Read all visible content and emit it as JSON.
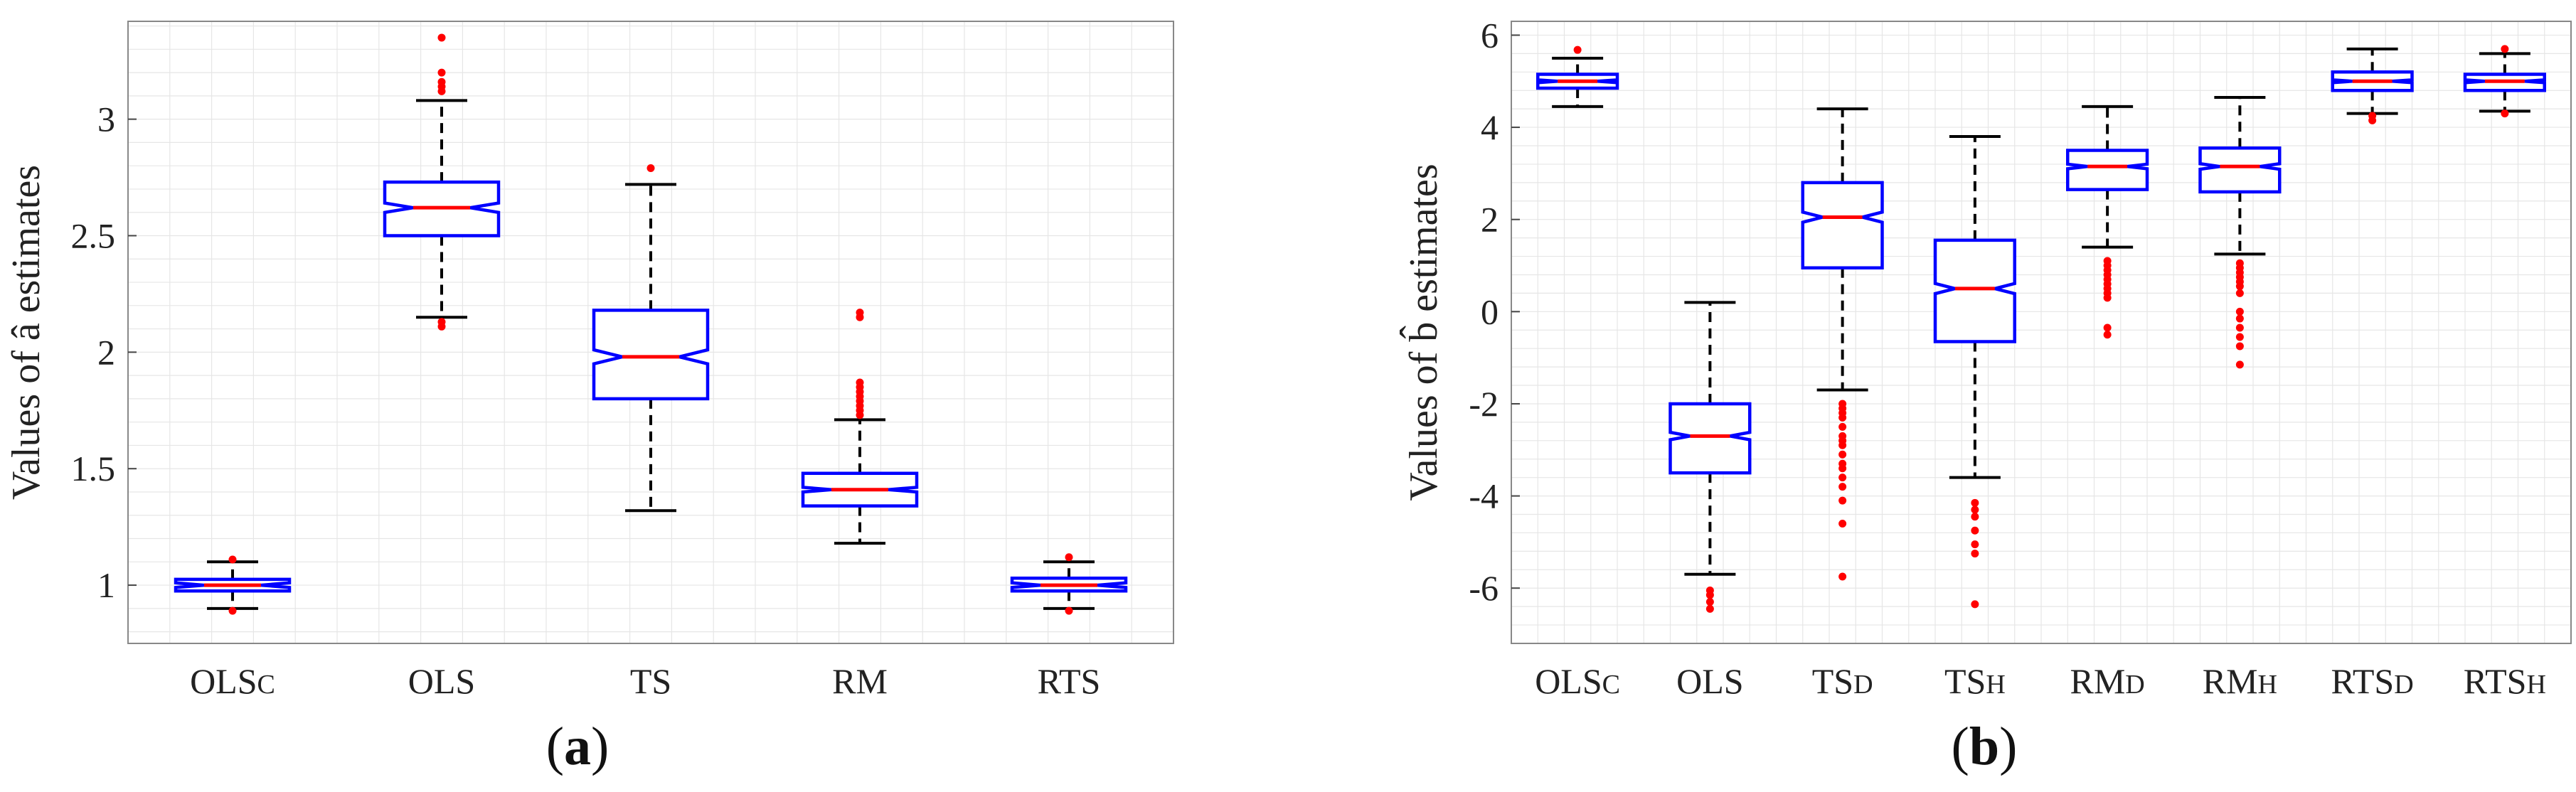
{
  "chart_data": [
    {
      "type": "box",
      "panel_label": "(a)",
      "ylabel": "Values of â estimates",
      "ylim": [
        0.75,
        3.42
      ],
      "yticks": [
        1,
        1.5,
        2,
        2.5,
        3
      ],
      "ytick_labels": [
        "1",
        "1.5",
        "2",
        "2.5",
        "3"
      ],
      "grid": true,
      "categories": [
        "OLSc",
        "OLS",
        "TS",
        "RM",
        "RTS"
      ],
      "boxes": [
        {
          "label": "OLSc",
          "whisker_low": 0.9,
          "q1": 0.975,
          "median": 1.0,
          "q3": 1.025,
          "whisker_high": 1.1,
          "notch": [
            0.99,
            1.01
          ],
          "outliers": [
            0.89,
            1.11
          ]
        },
        {
          "label": "OLS",
          "whisker_low": 2.15,
          "q1": 2.5,
          "median": 2.62,
          "q3": 2.73,
          "whisker_high": 3.08,
          "notch": [
            2.6,
            2.64
          ],
          "outliers": [
            2.11,
            2.13,
            3.12,
            3.14,
            3.16,
            3.2,
            3.35
          ]
        },
        {
          "label": "TS",
          "whisker_low": 1.32,
          "q1": 1.8,
          "median": 1.98,
          "q3": 2.18,
          "whisker_high": 2.72,
          "notch": [
            1.95,
            2.01
          ],
          "outliers": [
            2.79
          ]
        },
        {
          "label": "RM",
          "whisker_low": 1.18,
          "q1": 1.34,
          "median": 1.41,
          "q3": 1.48,
          "whisker_high": 1.71,
          "notch": [
            1.4,
            1.42
          ],
          "outliers": [
            1.73,
            1.75,
            1.77,
            1.79,
            1.81,
            1.83,
            1.85,
            1.87,
            2.15,
            2.17
          ]
        },
        {
          "label": "RTS",
          "whisker_low": 0.9,
          "q1": 0.975,
          "median": 1.0,
          "q3": 1.03,
          "whisker_high": 1.1,
          "notch": [
            0.99,
            1.01
          ],
          "outliers": [
            0.89,
            1.12
          ]
        }
      ]
    },
    {
      "type": "box",
      "panel_label": "(b)",
      "ylabel": "Values of b̂ estimates",
      "ylim": [
        -7.2,
        6.3
      ],
      "yticks": [
        -6,
        -4,
        -2,
        0,
        2,
        4,
        6
      ],
      "ytick_labels": [
        "-6",
        "-4",
        "-2",
        "0",
        "2",
        "4",
        "6"
      ],
      "grid": true,
      "categories": [
        "OLSc",
        "OLS",
        "TSD",
        "TSH",
        "RMD",
        "RMH",
        "RTSD",
        "RTSH"
      ],
      "boxes": [
        {
          "label": "OLSc",
          "whisker_low": 4.45,
          "q1": 4.85,
          "median": 5.0,
          "q3": 5.15,
          "whisker_high": 5.5,
          "notch": [
            4.97,
            5.03
          ],
          "outliers": [
            5.68
          ]
        },
        {
          "label": "OLS",
          "whisker_low": -5.7,
          "q1": -3.5,
          "median": -2.7,
          "q3": -2.0,
          "whisker_high": 0.2,
          "notch": [
            -2.78,
            -2.62
          ],
          "outliers": [
            -6.05,
            -6.15,
            -6.3,
            -6.45
          ]
        },
        {
          "label": "TSD",
          "whisker_low": -1.7,
          "q1": 0.95,
          "median": 2.05,
          "q3": 2.8,
          "whisker_high": 4.4,
          "notch": [
            1.94,
            2.16
          ],
          "outliers": [
            -2.0,
            -2.1,
            -2.2,
            -2.3,
            -2.5,
            -2.7,
            -2.8,
            -2.9,
            -3.1,
            -3.3,
            -3.4,
            -3.6,
            -3.8,
            -4.1,
            -4.6,
            -5.75
          ]
        },
        {
          "label": "TSH",
          "whisker_low": -3.6,
          "q1": -0.65,
          "median": 0.5,
          "q3": 1.55,
          "whisker_high": 3.8,
          "notch": [
            0.39,
            0.61
          ],
          "outliers": [
            -4.15,
            -4.3,
            -4.45,
            -4.75,
            -5.05,
            -5.25,
            -6.35
          ]
        },
        {
          "label": "RMD",
          "whisker_low": 1.4,
          "q1": 2.65,
          "median": 3.15,
          "q3": 3.5,
          "whisker_high": 4.45,
          "notch": [
            3.1,
            3.2
          ],
          "outliers": [
            1.1,
            1.0,
            0.9,
            0.8,
            0.7,
            0.6,
            0.5,
            0.4,
            0.3,
            -0.35,
            -0.5
          ]
        },
        {
          "label": "RMH",
          "whisker_low": 1.25,
          "q1": 2.6,
          "median": 3.15,
          "q3": 3.55,
          "whisker_high": 4.65,
          "notch": [
            3.09,
            3.21
          ],
          "outliers": [
            1.05,
            0.95,
            0.85,
            0.75,
            0.65,
            0.55,
            0.4,
            0.0,
            -0.15,
            -0.35,
            -0.55,
            -0.75,
            -1.15
          ]
        },
        {
          "label": "RTSD",
          "whisker_low": 4.3,
          "q1": 4.8,
          "median": 5.0,
          "q3": 5.2,
          "whisker_high": 5.7,
          "notch": [
            4.97,
            5.03
          ],
          "outliers": [
            4.25,
            4.15
          ]
        },
        {
          "label": "RTSH",
          "whisker_low": 4.35,
          "q1": 4.8,
          "median": 5.0,
          "q3": 5.15,
          "whisker_high": 5.6,
          "notch": [
            4.97,
            5.03
          ],
          "outliers": [
            4.3,
            5.7
          ]
        }
      ]
    }
  ],
  "colors": {
    "box": "#0000ff",
    "median": "#ff0000",
    "whisker": "#000000",
    "outlier": "#ff0000",
    "axis": "#888888",
    "grid": "#e6e6e6"
  }
}
